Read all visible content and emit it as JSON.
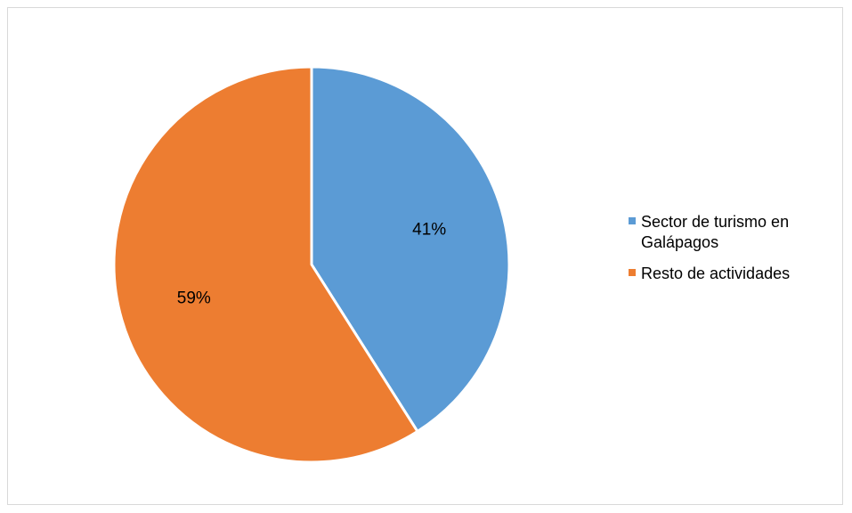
{
  "chart_data": {
    "type": "pie",
    "categories": [
      "Sector de turismo en Galápagos",
      "Resto de actividades"
    ],
    "values": [
      41,
      59
    ],
    "data_labels": [
      "41%",
      "59%"
    ],
    "colors": [
      "#5b9bd5",
      "#ed7d31"
    ],
    "title": "",
    "legend_placement": "right"
  }
}
